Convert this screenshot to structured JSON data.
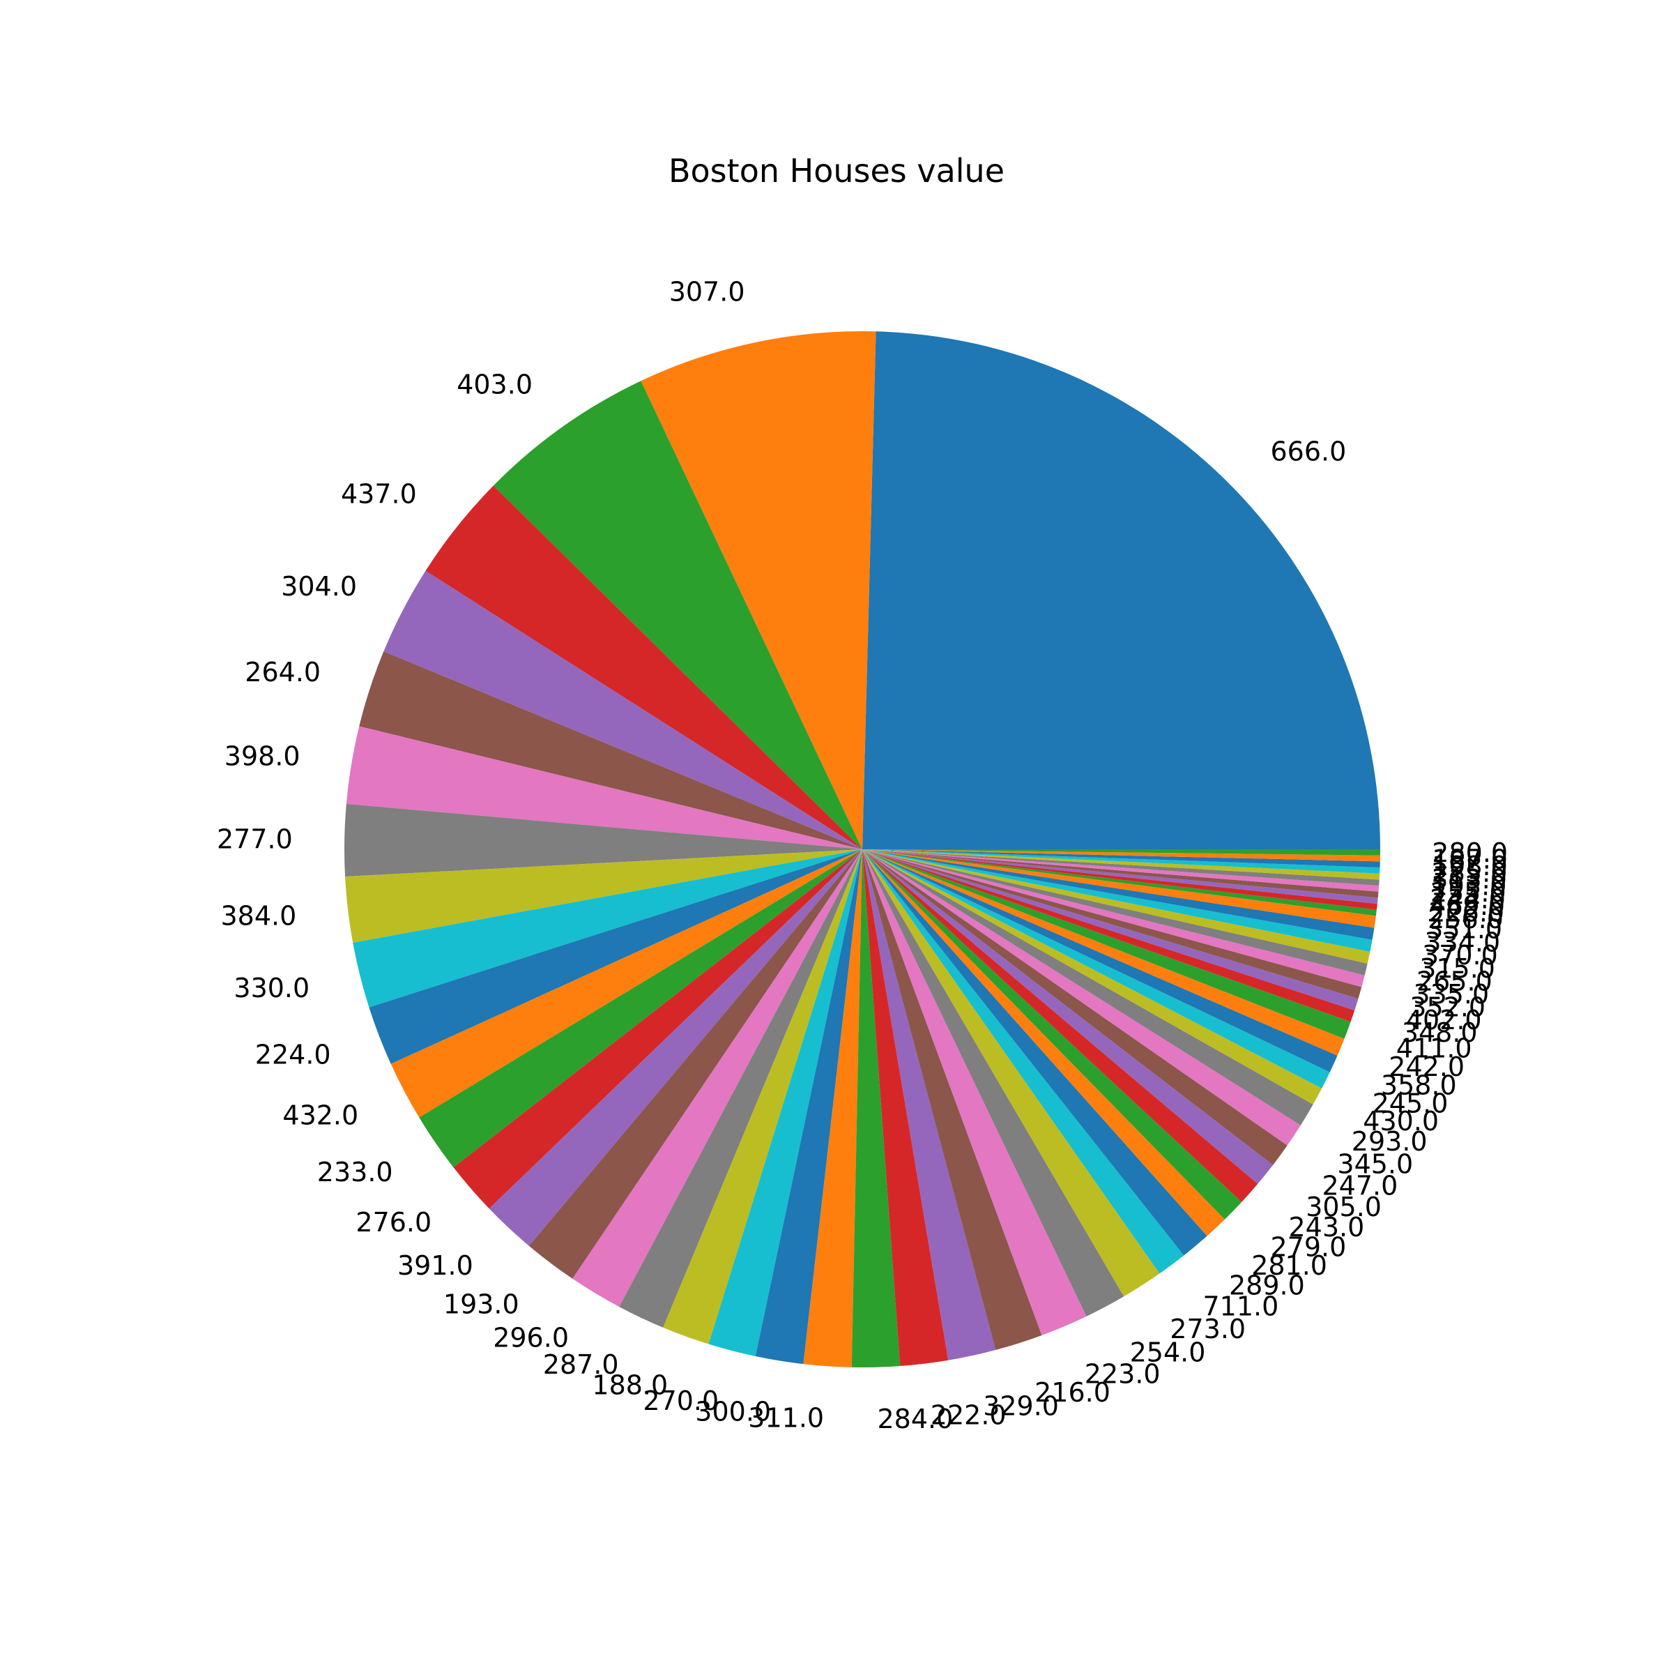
{
  "chart_data": {
    "type": "pie",
    "title": "Boston Houses value",
    "start_angle": 0,
    "direction": "counterclockwise",
    "palette": [
      "#1f77b4",
      "#ff7f0e",
      "#2ca02c",
      "#d62728",
      "#9467bd",
      "#8c564b",
      "#e377c2",
      "#7f7f7f",
      "#bcbd22",
      "#17becf"
    ],
    "labels": [
      "666.0",
      "307.0",
      "403.0",
      "437.0",
      "304.0",
      "264.0",
      "398.0",
      "277.0",
      "384.0",
      "330.0",
      "224.0",
      "432.0",
      "233.0",
      "276.0",
      "391.0",
      "193.0",
      "296.0",
      "287.0",
      "188.0",
      "270.0",
      "300.0",
      "311.0",
      "284.0",
      "222.0",
      "329.0",
      "216.0",
      "223.0",
      "254.0",
      "273.0",
      "711.0",
      "289.0",
      "281.0",
      "279.0",
      "243.0",
      "305.0",
      "247.0",
      "345.0",
      "293.0",
      "430.0",
      "245.0",
      "358.0",
      "242.0",
      "411.0",
      "348.0",
      "402.0",
      "352.0",
      "335.0",
      "265.0",
      "315.0",
      "370.0",
      "334.0",
      "351.0",
      "256.0",
      "226.0",
      "469.0",
      "244.0",
      "255.0",
      "193.0",
      "313.0",
      "285.0",
      "198.0",
      "187.0",
      "280.0"
    ],
    "values": [
      132,
      40,
      30,
      18,
      15,
      13,
      13,
      12,
      11,
      11,
      10,
      10,
      10,
      9,
      9,
      9,
      9,
      8,
      8,
      8,
      8,
      8,
      8,
      8,
      8,
      8,
      8,
      7,
      7,
      5,
      5,
      4,
      4,
      4,
      4,
      4,
      4,
      4,
      3,
      3,
      3,
      3,
      3,
      2,
      2,
      2,
      2,
      2,
      2,
      2,
      2,
      2,
      1,
      1,
      1,
      1,
      1,
      1,
      1,
      1,
      1,
      1,
      1
    ]
  }
}
